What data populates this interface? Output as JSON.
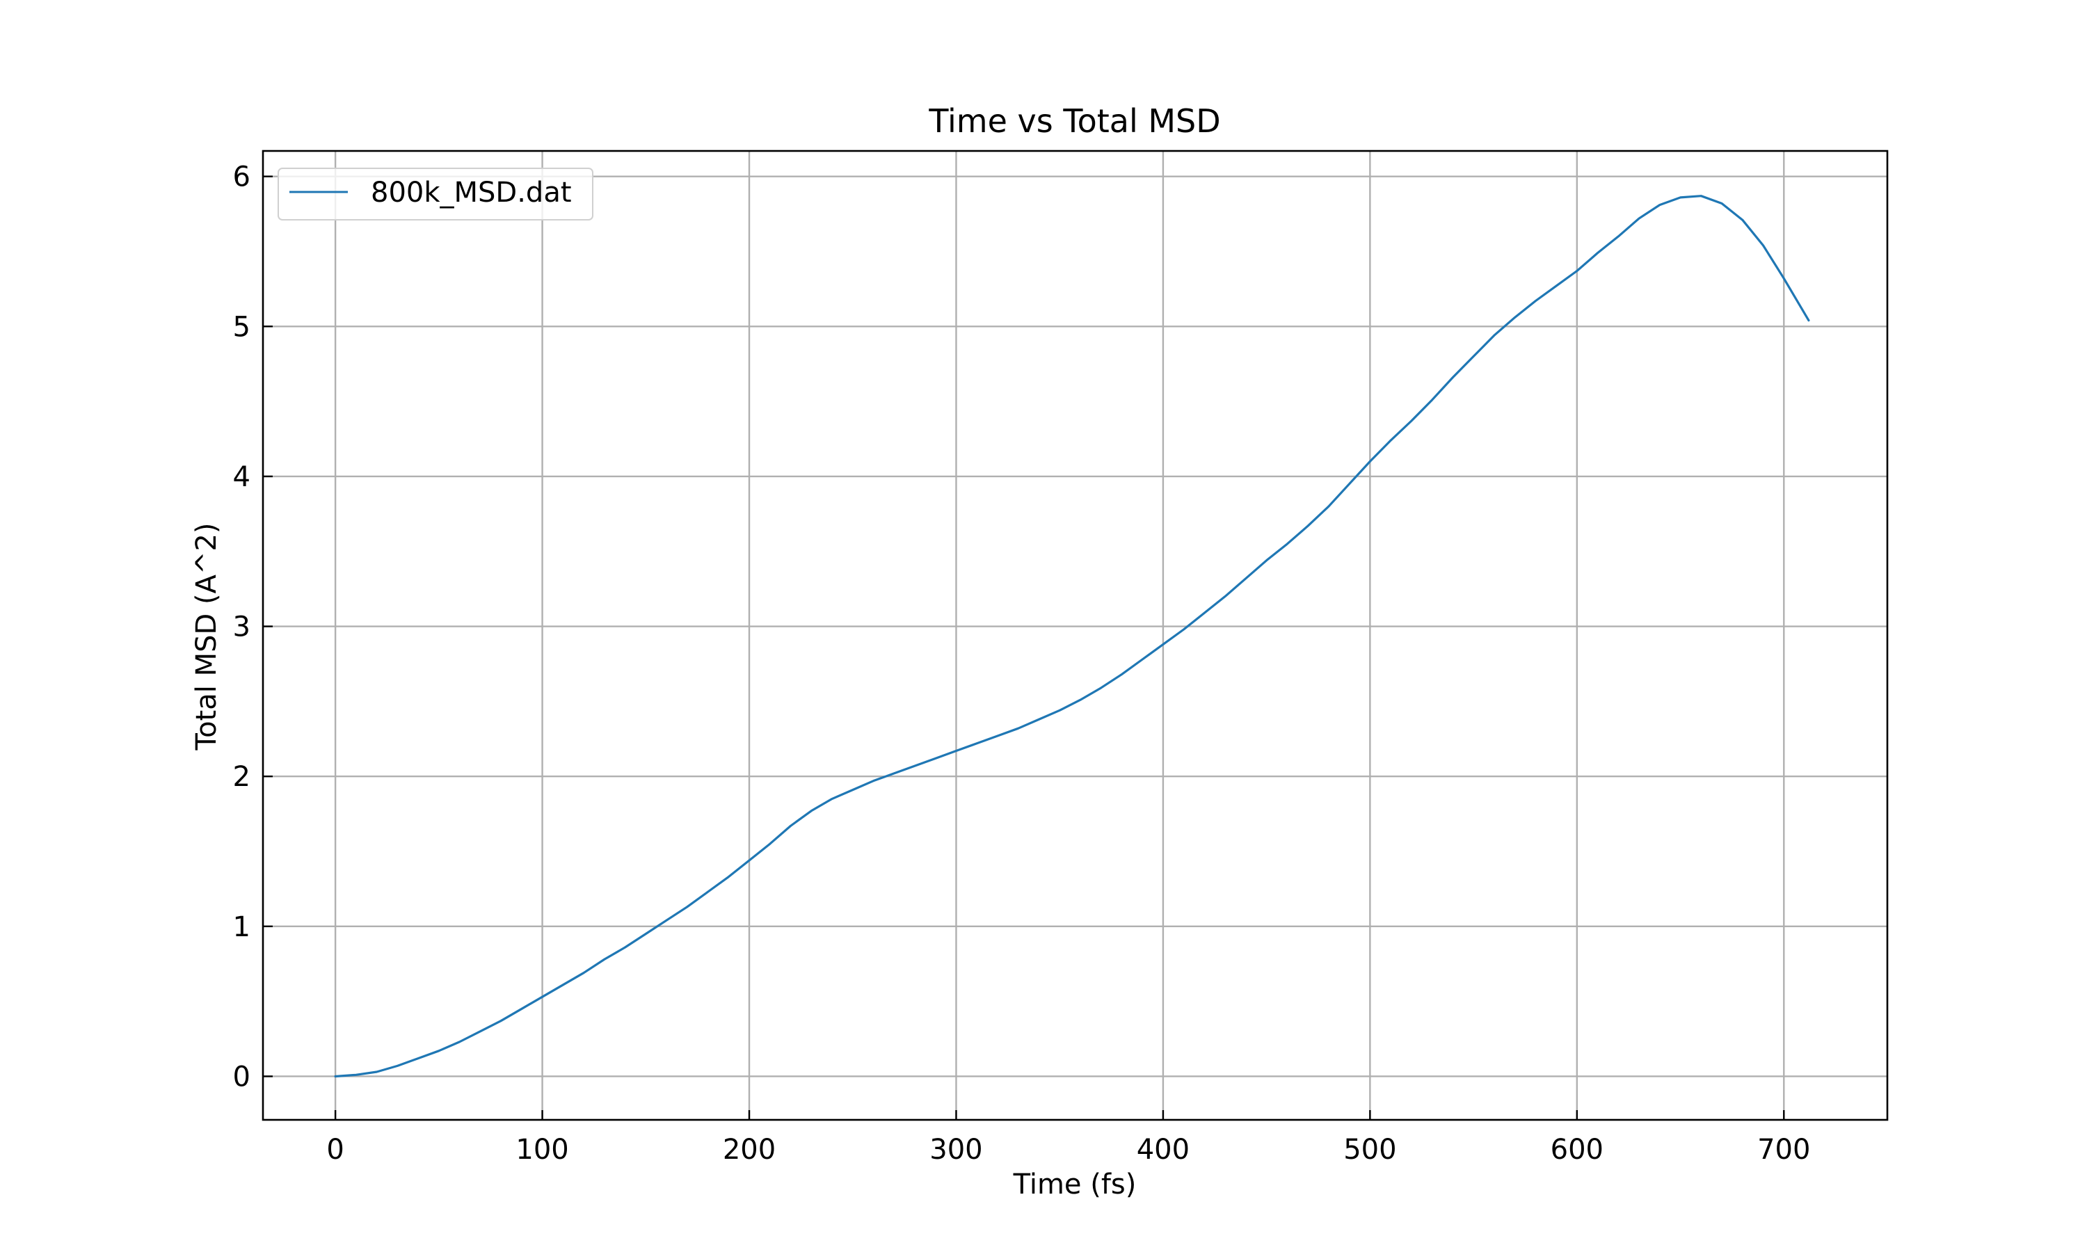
{
  "chart_data": {
    "type": "line",
    "title": "Time vs Total MSD",
    "xlabel": "Time (fs)",
    "ylabel": "Total MSD (A^2)",
    "xlim": [
      -35,
      750
    ],
    "ylim": [
      -0.29,
      6.17
    ],
    "xticks": [
      0,
      100,
      200,
      300,
      400,
      500,
      600,
      700
    ],
    "yticks": [
      0,
      1,
      2,
      3,
      4,
      5,
      6
    ],
    "grid": true,
    "legend_position": "top-left",
    "series": [
      {
        "name": "800k_MSD.dat",
        "color": "#1f77b4",
        "x": [
          0,
          10,
          20,
          30,
          40,
          50,
          60,
          70,
          80,
          90,
          100,
          110,
          120,
          130,
          140,
          150,
          160,
          170,
          180,
          190,
          200,
          210,
          220,
          230,
          240,
          250,
          260,
          270,
          280,
          290,
          300,
          310,
          320,
          330,
          340,
          350,
          360,
          370,
          380,
          390,
          400,
          410,
          420,
          430,
          440,
          450,
          460,
          470,
          480,
          490,
          500,
          510,
          520,
          530,
          540,
          550,
          560,
          570,
          580,
          590,
          600,
          610,
          620,
          630,
          640,
          650,
          660,
          670,
          680,
          690,
          700,
          712
        ],
        "y": [
          0.0,
          0.01,
          0.03,
          0.07,
          0.12,
          0.17,
          0.23,
          0.3,
          0.37,
          0.45,
          0.53,
          0.61,
          0.69,
          0.78,
          0.86,
          0.95,
          1.04,
          1.13,
          1.23,
          1.33,
          1.44,
          1.55,
          1.67,
          1.77,
          1.85,
          1.91,
          1.97,
          2.02,
          2.07,
          2.12,
          2.17,
          2.22,
          2.27,
          2.32,
          2.38,
          2.44,
          2.51,
          2.59,
          2.68,
          2.78,
          2.88,
          2.98,
          3.09,
          3.2,
          3.32,
          3.44,
          3.55,
          3.67,
          3.8,
          3.95,
          4.1,
          4.24,
          4.37,
          4.51,
          4.66,
          4.8,
          4.94,
          5.06,
          5.17,
          5.27,
          5.37,
          5.49,
          5.6,
          5.72,
          5.81,
          5.86,
          5.87,
          5.82,
          5.71,
          5.54,
          5.32,
          5.04
        ]
      }
    ]
  }
}
